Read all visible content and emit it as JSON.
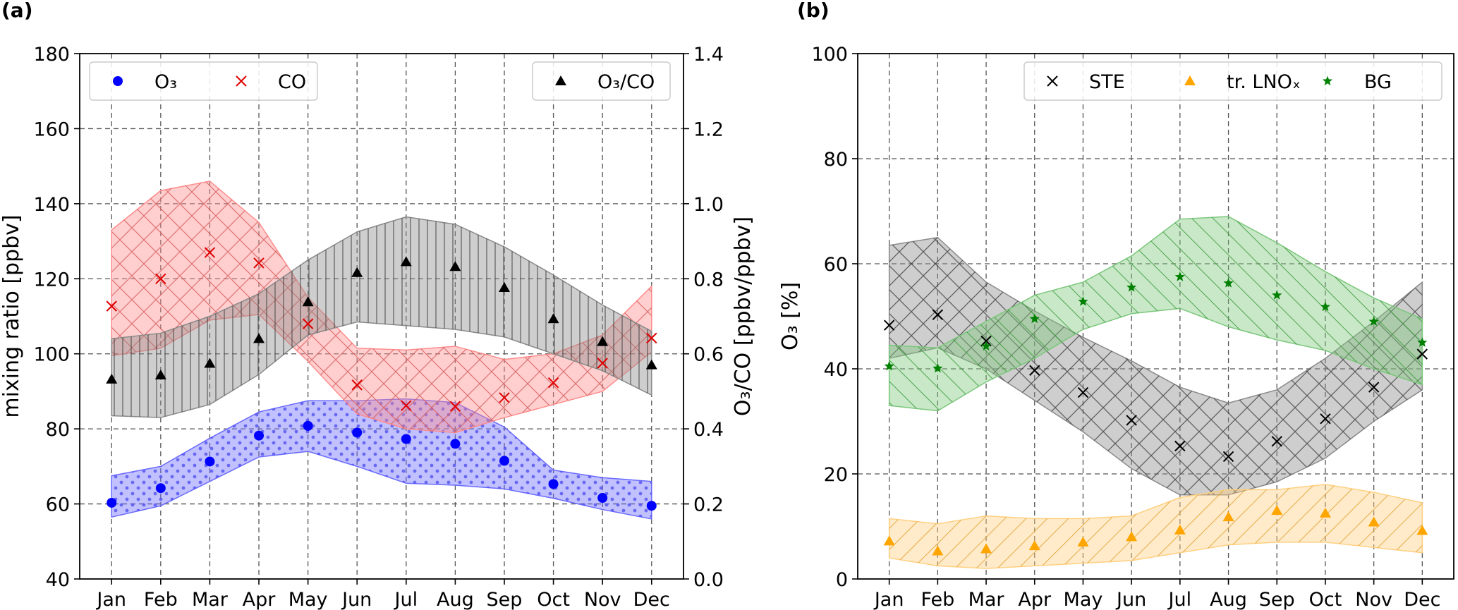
{
  "chart_data": [
    {
      "type": "scatter",
      "panel_label": "(a)",
      "categories": [
        "Jan",
        "Feb",
        "Mar",
        "Apr",
        "May",
        "Jun",
        "Jul",
        "Aug",
        "Sep",
        "Oct",
        "Nov",
        "Dec"
      ],
      "ylabel": "mixing ratio [ppbv]",
      "ylim": [
        40,
        180
      ],
      "yticks": [
        40,
        60,
        80,
        100,
        120,
        140,
        160,
        180
      ],
      "y2label": "O₃/CO [ppbv/ppbv]",
      "y2lim": [
        0.0,
        1.4
      ],
      "y2ticks": [
        "0.0",
        "0.2",
        "0.4",
        "0.6",
        "0.8",
        "1.0",
        "1.2",
        "1.4"
      ],
      "grid": true,
      "series": [
        {
          "name": "O₃",
          "axis": "left",
          "marker": "circle",
          "color": "#0000ff",
          "fill": "#6b6bff",
          "values": [
            60.3,
            64.2,
            71.3,
            78.2,
            80.8,
            79.0,
            77.3,
            76.0,
            71.5,
            65.3,
            61.6,
            59.5
          ],
          "band_lower": [
            56.5,
            59.5,
            66.0,
            72.5,
            74.0,
            70.0,
            65.5,
            65.0,
            64.0,
            61.5,
            58.5,
            56.0
          ],
          "band_upper": [
            67.5,
            70.0,
            77.5,
            84.5,
            87.5,
            87.5,
            88.0,
            87.0,
            80.5,
            69.0,
            67.0,
            66.0
          ]
        },
        {
          "name": "CO",
          "axis": "left",
          "marker": "x",
          "color": "#e00000",
          "fill": "#ff8c8c",
          "values": [
            112.7,
            120.0,
            127.0,
            124.2,
            108.0,
            91.7,
            86.2,
            86.0,
            88.3,
            92.3,
            97.5,
            104.2
          ],
          "band_lower": [
            99.5,
            101.5,
            109.0,
            110.5,
            98.0,
            84.0,
            80.0,
            79.0,
            83.0,
            86.5,
            90.0,
            100.5
          ],
          "band_upper": [
            133.0,
            143.5,
            146.0,
            135.0,
            115.0,
            101.5,
            101.0,
            102.0,
            98.5,
            100.0,
            105.0,
            118.0
          ]
        },
        {
          "name": "O₃/CO",
          "axis": "right",
          "marker": "triangle",
          "color": "#000000",
          "fill": "#8a8a8a",
          "values": [
            0.532,
            0.543,
            0.574,
            0.64,
            0.738,
            0.816,
            0.845,
            0.832,
            0.776,
            0.693,
            0.632,
            0.57
          ],
          "band_lower": [
            0.435,
            0.43,
            0.465,
            0.545,
            0.65,
            0.685,
            0.675,
            0.665,
            0.645,
            0.6,
            0.555,
            0.49
          ],
          "band_upper": [
            0.64,
            0.655,
            0.7,
            0.76,
            0.85,
            0.925,
            0.965,
            0.945,
            0.885,
            0.81,
            0.73,
            0.66
          ]
        }
      ],
      "legends": [
        {
          "location": "upper-left",
          "entries": [
            {
              "label": "O₃",
              "series": 0
            },
            {
              "label": "CO",
              "series": 1
            }
          ]
        },
        {
          "location": "upper-right",
          "entries": [
            {
              "label": "O₃/CO",
              "series": 2
            }
          ]
        }
      ]
    },
    {
      "type": "scatter",
      "panel_label": "(b)",
      "categories": [
        "Jan",
        "Feb",
        "Mar",
        "Apr",
        "May",
        "Jun",
        "Jul",
        "Aug",
        "Sep",
        "Oct",
        "Nov",
        "Dec"
      ],
      "ylabel": "O₃ [%]",
      "ylim": [
        0,
        100
      ],
      "yticks": [
        0,
        20,
        40,
        60,
        80,
        100
      ],
      "grid": true,
      "series": [
        {
          "name": "STE",
          "marker": "x",
          "color": "#000000",
          "fill": "#8a8a8a",
          "values": [
            48.3,
            50.3,
            45.3,
            39.7,
            35.5,
            30.2,
            25.3,
            23.3,
            26.2,
            30.5,
            36.5,
            42.8
          ],
          "band_lower": [
            42.0,
            44.0,
            40.0,
            34.0,
            28.0,
            21.0,
            16.0,
            16.0,
            18.5,
            23.0,
            30.0,
            36.0
          ],
          "band_upper": [
            63.5,
            65.0,
            56.5,
            51.0,
            46.0,
            41.5,
            36.5,
            33.5,
            36.0,
            42.0,
            49.0,
            56.5
          ]
        },
        {
          "name": "tr. LNOₓ",
          "marker": "triangle",
          "color": "#ffa500",
          "fill": "#ffd080",
          "values": [
            7.2,
            5.3,
            5.7,
            6.3,
            7.0,
            8.0,
            9.3,
            11.8,
            13.0,
            12.5,
            10.8,
            9.2
          ],
          "band_lower": [
            4.0,
            2.5,
            2.0,
            2.5,
            3.0,
            3.5,
            5.0,
            6.5,
            7.0,
            7.0,
            6.0,
            5.0
          ],
          "band_upper": [
            11.5,
            10.5,
            12.0,
            11.5,
            11.5,
            12.0,
            15.5,
            17.0,
            17.0,
            18.0,
            16.5,
            14.5
          ]
        },
        {
          "name": "BG",
          "marker": "star",
          "color": "#008000",
          "fill": "#7bc77b",
          "values": [
            40.5,
            40.1,
            44.3,
            49.5,
            52.8,
            55.5,
            57.5,
            56.3,
            54.0,
            51.8,
            49.0,
            45.0
          ],
          "band_lower": [
            33.0,
            32.0,
            37.5,
            42.0,
            47.5,
            50.5,
            51.5,
            48.0,
            45.5,
            43.5,
            40.0,
            37.0
          ],
          "band_upper": [
            44.5,
            44.0,
            49.0,
            54.0,
            56.5,
            61.5,
            68.5,
            69.0,
            64.0,
            58.5,
            53.5,
            49.5
          ]
        }
      ],
      "legends": [
        {
          "location": "upper-right",
          "entries": [
            {
              "label": "STE",
              "series": 0
            },
            {
              "label": "tr. LNOₓ",
              "series": 1
            },
            {
              "label": "BG",
              "series": 2
            }
          ]
        }
      ]
    }
  ]
}
